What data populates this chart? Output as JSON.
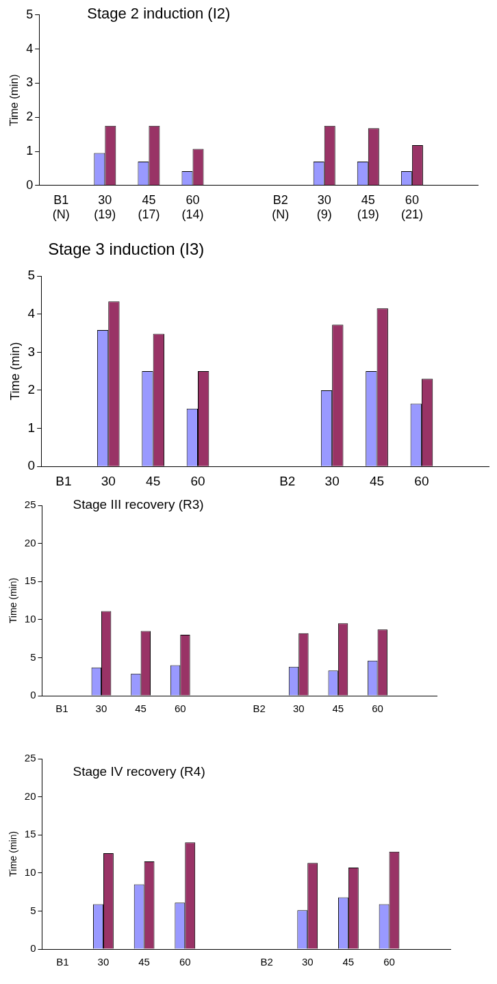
{
  "chart_data": [
    {
      "type": "bar",
      "title": "Stage 2 induction (I2)",
      "ylabel": "Time (min)",
      "categories": [
        "B1\n(N)",
        "30\n(19)",
        "45\n(17)",
        "60\n(14)",
        null,
        "B2\n(N)",
        "30\n(9)",
        "45\n(19)",
        "60\n(21)",
        null
      ],
      "ylim": [
        0,
        5
      ],
      "yticks": [
        0,
        1,
        2,
        3,
        4,
        5
      ],
      "series": [
        {
          "color": "#9999ff",
          "values": [
            null,
            0.95,
            0.7,
            0.42,
            null,
            null,
            0.7,
            0.7,
            0.42,
            null
          ]
        },
        {
          "color": "#993366",
          "values": [
            null,
            1.75,
            1.75,
            1.07,
            null,
            null,
            1.75,
            1.68,
            1.18,
            null
          ]
        }
      ]
    },
    {
      "type": "bar",
      "title": "Stage 3 induction (I3)",
      "ylabel": "Time (min)",
      "categories": [
        "B1",
        "30",
        "45",
        "60",
        null,
        "B2",
        "30",
        "45",
        "60",
        null
      ],
      "ylim": [
        0,
        5
      ],
      "yticks": [
        0,
        1,
        2,
        3,
        4,
        5
      ],
      "series": [
        {
          "color": "#9999ff",
          "values": [
            null,
            3.58,
            2.5,
            1.52,
            null,
            null,
            2.0,
            2.5,
            1.65,
            null
          ]
        },
        {
          "color": "#993366",
          "values": [
            null,
            4.33,
            3.48,
            2.5,
            null,
            null,
            3.72,
            4.15,
            2.3,
            null
          ]
        }
      ]
    },
    {
      "type": "bar",
      "title": "Stage III recovery (R3)",
      "ylabel": "Time (min)",
      "categories": [
        "B1",
        "30",
        "45",
        "60",
        null,
        "B2",
        "30",
        "45",
        "60",
        null
      ],
      "ylim": [
        0,
        25
      ],
      "yticks": [
        0,
        5,
        10,
        15,
        20,
        25
      ],
      "series": [
        {
          "color": "#9999ff",
          "values": [
            null,
            3.7,
            2.9,
            4.0,
            null,
            null,
            3.8,
            3.3,
            4.6,
            null
          ]
        },
        {
          "color": "#993366",
          "values": [
            null,
            11.1,
            8.5,
            8.0,
            null,
            null,
            8.2,
            9.5,
            8.7,
            null
          ]
        }
      ]
    },
    {
      "type": "bar",
      "title": "Stage IV recovery (R4)",
      "ylabel": "Time (min)",
      "categories": [
        "B1",
        "30",
        "45",
        "60",
        null,
        "B2",
        "30",
        "45",
        "60",
        null
      ],
      "ylim": [
        0,
        25
      ],
      "yticks": [
        0,
        5,
        10,
        15,
        20,
        25
      ],
      "series": [
        {
          "color": "#9999ff",
          "values": [
            null,
            5.9,
            8.5,
            6.1,
            null,
            null,
            5.1,
            6.8,
            5.9,
            null
          ]
        },
        {
          "color": "#993366",
          "values": [
            null,
            12.6,
            11.5,
            14.0,
            null,
            null,
            11.3,
            10.7,
            12.8,
            null
          ]
        }
      ]
    }
  ]
}
